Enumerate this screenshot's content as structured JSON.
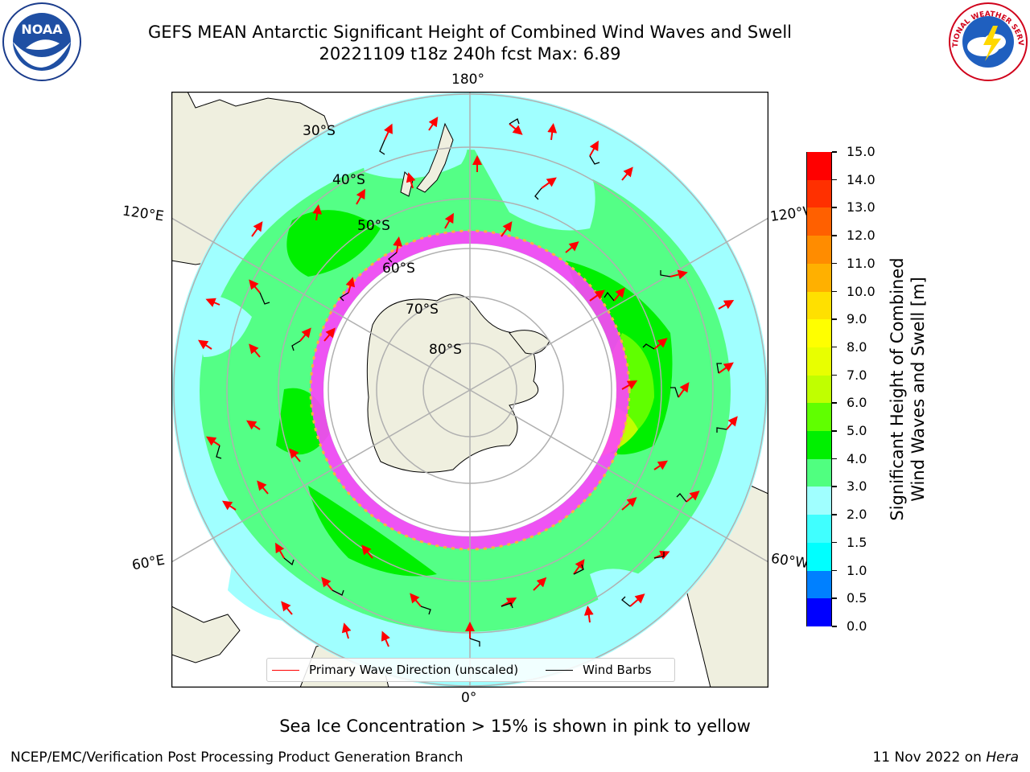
{
  "title_line1": "GEFS MEAN Antarctic Significant Height of Combined Wind Waves and Swell",
  "title_line2": "20221109 t18z 240h fcst   Max: 6.89",
  "logos": {
    "left": "NOAA",
    "right": "NATIONAL WEATHER SERVICE"
  },
  "longitude_labels": {
    "top": "180°",
    "bottom": "0°",
    "left_upper": "120°E",
    "left_lower": "60°E",
    "right_upper": "120°W",
    "right_lower": "60°W"
  },
  "latitude_labels": [
    "30°S",
    "40°S",
    "50°S",
    "60°S",
    "70°S",
    "80°S"
  ],
  "colorbar": {
    "label_line1": "Significant Height of Combined",
    "label_line2": "Wind Waves and Swell [m]",
    "ticks": [
      "0.0",
      "0.5",
      "1.0",
      "1.5",
      "2.0",
      "3.0",
      "4.0",
      "5.0",
      "6.0",
      "7.0",
      "8.0",
      "9.0",
      "10.0",
      "11.0",
      "12.0",
      "13.0",
      "14.0",
      "15.0"
    ],
    "colors": [
      "#0000ff",
      "#0080ff",
      "#00ffff",
      "#40ffff",
      "#a0ffff",
      "#50ff80",
      "#00f000",
      "#60ff00",
      "#c0ff00",
      "#e8ff00",
      "#ffff00",
      "#ffe000",
      "#ffb000",
      "#ff8c00",
      "#ff6000",
      "#ff3000",
      "#ff0000"
    ]
  },
  "legend": {
    "primary": "Primary Wave Direction (unscaled)",
    "wind": "Wind Barbs"
  },
  "note": "Sea Ice Concentration > 15% is shown in pink to yellow",
  "footer_left": "NCEP/EMC/Verification Post Processing Product Generation Branch",
  "footer_right_date": "11 Nov 2022 on ",
  "footer_right_host": "Hera",
  "colors": {
    "land": "#efefdf",
    "sea_ice": "#ff40ff",
    "arrow": "#ff0000",
    "barb": "#000000",
    "grid": "#b0b0b0"
  }
}
